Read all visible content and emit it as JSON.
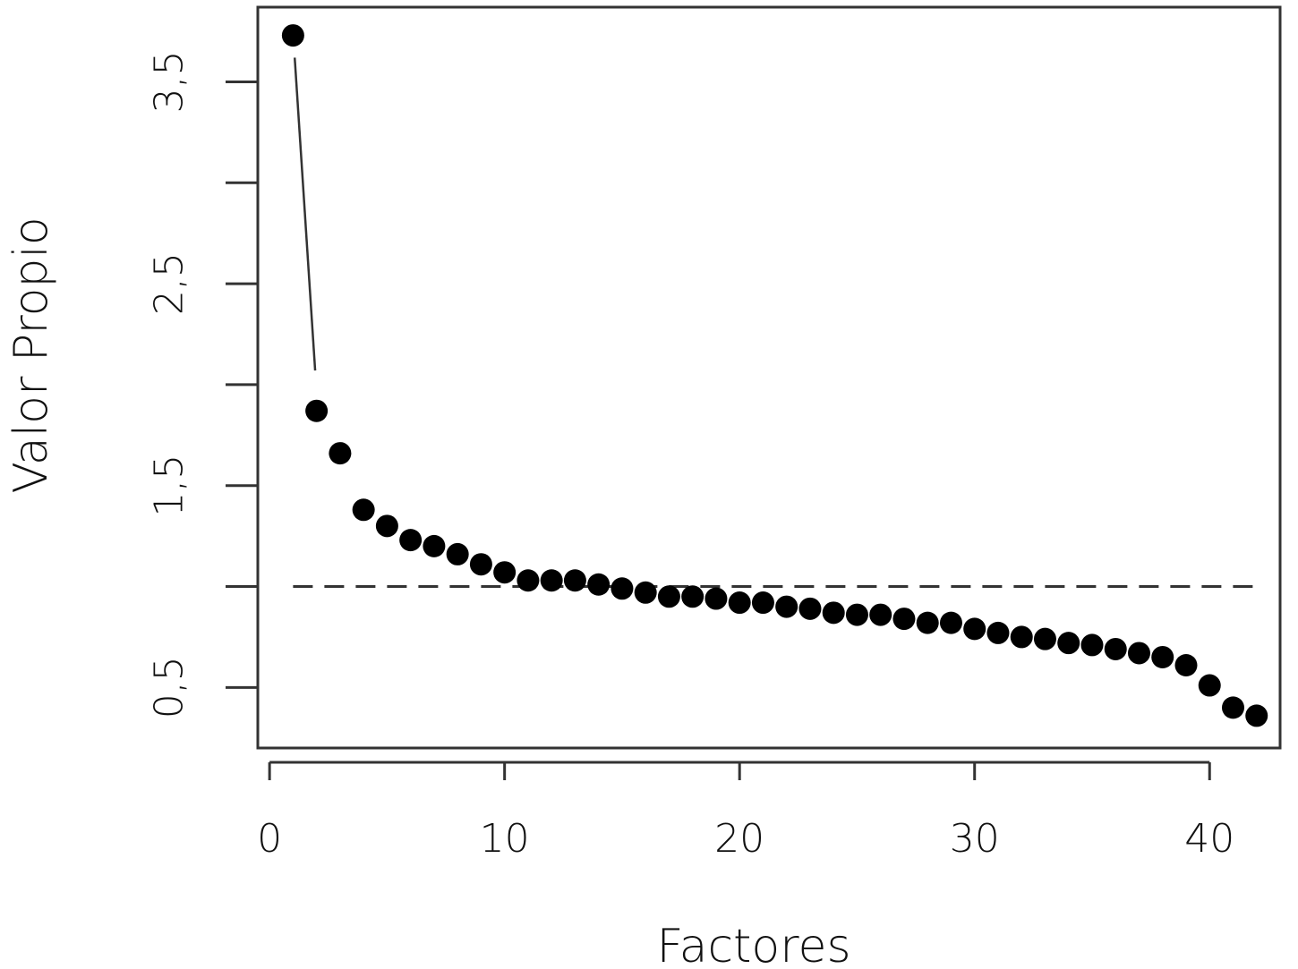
{
  "chart_data": {
    "type": "scatter",
    "title": "",
    "xlabel": "Factores",
    "ylabel": "Valor Propio",
    "xlim": [
      -0.5,
      43
    ],
    "ylim": [
      0.2,
      3.87
    ],
    "xticks": [
      0,
      10,
      20,
      30,
      40
    ],
    "yticks": [
      0.5,
      1.0,
      1.5,
      2.0,
      2.5,
      3.0,
      3.5
    ],
    "ytick_labels": [
      "0,5",
      "",
      "1,5",
      "",
      "2,5",
      "",
      "3,5"
    ],
    "xtick_labels": [
      "0",
      "10",
      "20",
      "30",
      "40"
    ],
    "reference_line": {
      "y": 1.0,
      "style": "dashed",
      "x_range": [
        1,
        42
      ]
    },
    "connector_segment": {
      "x": [
        1.07,
        1.94
      ],
      "y": [
        3.62,
        2.07
      ]
    },
    "grid": false,
    "legend": "none",
    "series": [
      {
        "x": [
          1,
          2,
          3,
          4,
          5,
          6,
          7,
          8,
          9,
          10,
          11,
          12,
          13,
          14,
          15,
          16,
          17,
          18,
          19,
          20,
          21,
          22,
          23,
          24,
          25,
          26,
          27,
          28,
          29,
          30,
          31,
          32,
          33,
          34,
          35,
          36,
          37,
          38,
          39,
          40,
          41,
          42
        ],
        "values": [
          3.73,
          1.87,
          1.66,
          1.38,
          1.3,
          1.23,
          1.2,
          1.16,
          1.11,
          1.07,
          1.03,
          1.03,
          1.03,
          1.01,
          0.99,
          0.97,
          0.95,
          0.95,
          0.94,
          0.92,
          0.92,
          0.9,
          0.89,
          0.87,
          0.86,
          0.86,
          0.84,
          0.82,
          0.82,
          0.79,
          0.77,
          0.75,
          0.74,
          0.72,
          0.71,
          0.69,
          0.67,
          0.65,
          0.61,
          0.51,
          0.4,
          0.36
        ]
      }
    ]
  }
}
